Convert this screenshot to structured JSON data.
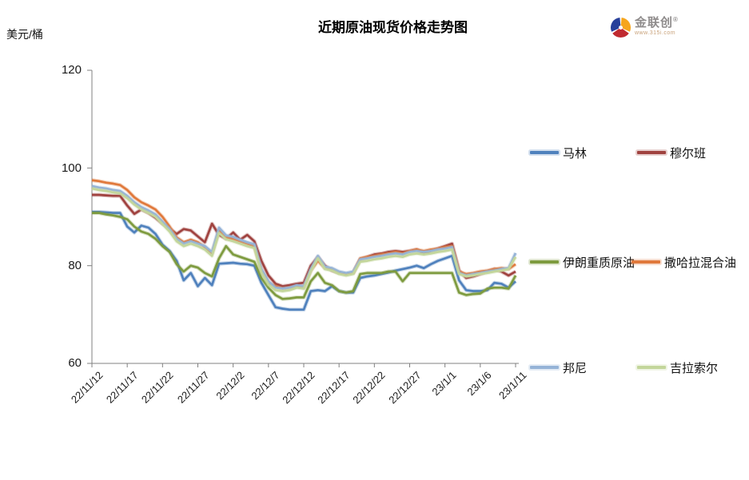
{
  "header": {
    "title": "近期原油现货价格走势图",
    "unit_label": "美元/桶"
  },
  "logo": {
    "name": "金联创",
    "registered": "®",
    "subtext": "www.315i.com"
  },
  "chart_data": {
    "type": "line",
    "title": "近期原油现货价格走势图",
    "xlabel": "",
    "ylabel": "美元/桶",
    "ylim": [
      60,
      120
    ],
    "yticks": [
      60,
      80,
      100,
      120
    ],
    "grid": false,
    "legend_position": "right",
    "tick_labels": [
      "22/11/12",
      "22/11/17",
      "22/11/22",
      "22/11/27",
      "22/12/2",
      "22/12/7",
      "22/12/12",
      "22/12/17",
      "22/12/22",
      "22/12/27",
      "23/1/1",
      "23/1/6",
      "23/1/11"
    ],
    "x": [
      "22/11/12",
      "22/11/13",
      "22/11/14",
      "22/11/15",
      "22/11/16",
      "22/11/17",
      "22/11/18",
      "22/11/19",
      "22/11/20",
      "22/11/21",
      "22/11/22",
      "22/11/23",
      "22/11/24",
      "22/11/25",
      "22/11/26",
      "22/11/27",
      "22/11/28",
      "22/11/29",
      "22/11/30",
      "22/12/1",
      "22/12/2",
      "22/12/3",
      "22/12/4",
      "22/12/5",
      "22/12/6",
      "22/12/7",
      "22/12/8",
      "22/12/9",
      "22/12/10",
      "22/12/11",
      "22/12/12",
      "22/12/13",
      "22/12/14",
      "22/12/15",
      "22/12/16",
      "22/12/17",
      "22/12/18",
      "22/12/19",
      "22/12/20",
      "22/12/21",
      "22/12/22",
      "22/12/23",
      "22/12/24",
      "22/12/25",
      "22/12/26",
      "22/12/27",
      "22/12/28",
      "22/12/29",
      "22/12/30",
      "22/12/31",
      "23/1/1",
      "23/1/2",
      "23/1/3",
      "23/1/4",
      "23/1/5",
      "23/1/6",
      "23/1/7",
      "23/1/8",
      "23/1/9",
      "23/1/10",
      "23/1/11"
    ],
    "series": [
      {
        "name": "马林",
        "color": "#4F81BD",
        "values": [
          91.0,
          91.0,
          90.9,
          90.8,
          90.8,
          88.0,
          86.8,
          88.2,
          87.8,
          86.5,
          84.3,
          83.0,
          81.0,
          77.0,
          78.5,
          75.8,
          77.5,
          76.0,
          80.4,
          80.5,
          80.6,
          80.4,
          80.3,
          80.0,
          76.5,
          74.0,
          71.5,
          71.2,
          71.0,
          71.0,
          71.0,
          74.8,
          75.0,
          74.8,
          75.8,
          74.8,
          74.5,
          74.5,
          77.5,
          77.8,
          78.0,
          78.3,
          78.6,
          79.0,
          79.3,
          79.6,
          80.0,
          79.5,
          80.3,
          81.0,
          81.5,
          82.0,
          77.0,
          75.0,
          74.8,
          74.8,
          75.0,
          76.5,
          76.3,
          75.5,
          76.8
        ]
      },
      {
        "name": "穆尔班",
        "color": "#A0423F",
        "values": [
          94.5,
          94.5,
          94.4,
          94.3,
          94.3,
          92.3,
          90.6,
          91.5,
          90.8,
          89.8,
          88.6,
          87.6,
          86.5,
          87.5,
          87.2,
          86.0,
          84.8,
          88.6,
          86.3,
          85.5,
          86.8,
          85.3,
          86.3,
          85.0,
          81.0,
          78.0,
          76.3,
          75.8,
          76.0,
          76.3,
          76.5,
          80.0,
          81.8,
          80.0,
          79.0,
          78.5,
          78.3,
          78.5,
          81.3,
          81.8,
          82.3,
          82.5,
          82.8,
          83.0,
          82.8,
          83.0,
          83.3,
          82.5,
          83.0,
          83.5,
          84.0,
          84.5,
          79.0,
          77.5,
          77.8,
          78.3,
          78.8,
          79.3,
          78.8,
          78.0,
          78.8
        ]
      },
      {
        "name": "伊朗重质原油",
        "color": "#7E9B3F",
        "values": [
          90.8,
          90.8,
          90.5,
          90.3,
          90.0,
          89.5,
          88.0,
          87.0,
          86.5,
          85.5,
          84.0,
          82.8,
          80.3,
          78.8,
          80.0,
          79.6,
          78.5,
          77.8,
          81.5,
          84.0,
          82.3,
          81.8,
          81.3,
          80.8,
          77.5,
          75.5,
          74.0,
          73.2,
          73.3,
          73.5,
          73.5,
          76.8,
          78.5,
          76.5,
          76.0,
          74.8,
          74.5,
          74.8,
          78.3,
          78.5,
          78.5,
          78.5,
          78.8,
          78.8,
          76.8,
          78.5,
          78.5,
          78.5,
          78.5,
          78.5,
          78.5,
          78.5,
          74.5,
          74.0,
          74.2,
          74.3,
          75.3,
          75.5,
          75.5,
          75.3,
          78.0
        ]
      },
      {
        "name": "撒哈拉混合油",
        "color": "#E0793C",
        "values": [
          97.5,
          97.3,
          97.0,
          96.8,
          96.5,
          95.5,
          94.0,
          93.0,
          92.3,
          91.5,
          90.0,
          88.0,
          85.8,
          84.8,
          85.3,
          84.8,
          83.8,
          82.5,
          87.2,
          85.8,
          85.5,
          85.0,
          84.5,
          84.0,
          79.0,
          76.5,
          75.8,
          75.3,
          75.5,
          75.8,
          75.5,
          79.0,
          81.0,
          79.5,
          79.3,
          78.5,
          78.3,
          78.5,
          81.5,
          81.8,
          82.0,
          82.3,
          82.5,
          82.8,
          82.5,
          83.0,
          83.3,
          83.0,
          83.3,
          83.5,
          83.8,
          84.0,
          78.8,
          78.3,
          78.5,
          78.8,
          79.0,
          79.3,
          79.5,
          79.3,
          80.3
        ]
      },
      {
        "name": "邦尼",
        "color": "#95B3D7",
        "values": [
          96.3,
          96.0,
          95.8,
          95.5,
          95.3,
          94.3,
          93.0,
          92.0,
          91.3,
          90.5,
          89.0,
          87.5,
          85.5,
          84.5,
          85.0,
          84.5,
          84.0,
          82.8,
          87.8,
          86.2,
          85.9,
          85.3,
          84.8,
          84.4,
          79.3,
          76.8,
          75.5,
          75.3,
          75.5,
          76.0,
          75.8,
          79.3,
          82.0,
          79.8,
          79.5,
          78.8,
          78.5,
          78.8,
          81.3,
          81.5,
          81.8,
          82.0,
          82.3,
          82.5,
          82.3,
          82.8,
          83.0,
          82.8,
          83.0,
          83.3,
          83.5,
          83.8,
          78.5,
          78.0,
          78.3,
          78.5,
          78.8,
          79.0,
          79.3,
          79.5,
          82.6
        ]
      },
      {
        "name": "吉拉索尔",
        "color": "#C3D69B",
        "values": [
          95.8,
          95.5,
          95.3,
          95.0,
          94.8,
          93.8,
          92.5,
          91.5,
          90.8,
          90.0,
          88.5,
          87.0,
          85.0,
          84.0,
          84.5,
          84.0,
          83.3,
          82.0,
          86.7,
          85.4,
          85.0,
          84.5,
          84.0,
          83.6,
          78.6,
          76.1,
          75.0,
          74.8,
          75.0,
          75.5,
          75.3,
          78.8,
          81.5,
          79.3,
          79.0,
          78.3,
          78.0,
          78.3,
          80.8,
          81.0,
          81.3,
          81.5,
          81.8,
          82.0,
          81.8,
          82.3,
          82.5,
          82.3,
          82.5,
          82.8,
          83.0,
          83.3,
          78.3,
          77.8,
          78.0,
          78.3,
          78.5,
          78.8,
          79.0,
          79.3,
          81.8
        ]
      }
    ]
  }
}
